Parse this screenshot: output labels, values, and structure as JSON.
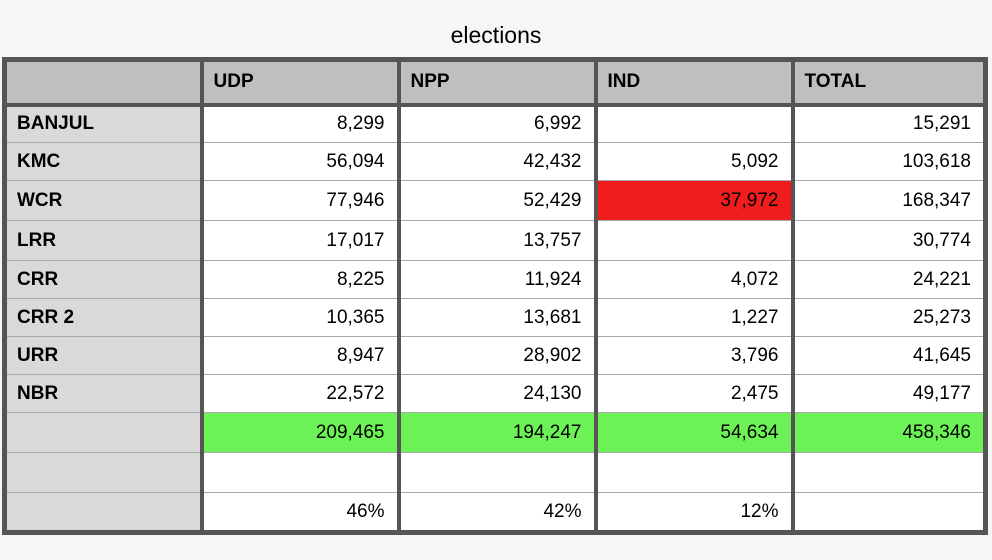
{
  "title": "elections",
  "columns": [
    "",
    "UDP",
    "NPP",
    "IND",
    "TOTAL"
  ],
  "rows": [
    {
      "label": "BANJUL",
      "cells": [
        "8,299",
        "6,992",
        "",
        "15,291"
      ]
    },
    {
      "label": "KMC",
      "cells": [
        "56,094",
        "42,432",
        "5,092",
        "103,618"
      ]
    },
    {
      "label": "WCR",
      "cells": [
        "77,946",
        "52,429",
        "37,972",
        "168,347"
      ]
    },
    {
      "label": "LRR",
      "cells": [
        "17,017",
        "13,757",
        "",
        "30,774"
      ]
    },
    {
      "label": "CRR",
      "cells": [
        "8,225",
        "11,924",
        "4,072",
        "24,221"
      ]
    },
    {
      "label": "CRR 2",
      "cells": [
        "10,365",
        "13,681",
        "1,227",
        "25,273"
      ]
    },
    {
      "label": "URR",
      "cells": [
        "8,947",
        "28,902",
        "3,796",
        "41,645"
      ]
    },
    {
      "label": "NBR",
      "cells": [
        "22,572",
        "24,130",
        "2,475",
        "49,177"
      ]
    }
  ],
  "totals": {
    "label": "",
    "cells": [
      "209,465",
      "194,247",
      "54,634",
      "458,346"
    ]
  },
  "blank_row": {
    "label": "",
    "cells": [
      "",
      "",
      "",
      ""
    ]
  },
  "percent_row": {
    "label": "",
    "cells": [
      "46%",
      "42%",
      "12%",
      ""
    ]
  },
  "colors": {
    "header_bg": "#bfbfbf",
    "row_label_bg": "#d9d9d9",
    "totals_bg": "#6cf256",
    "highlight_bg": "#f11c1c",
    "border_dark": "#555555"
  },
  "highlight_cell": {
    "row": "WCR",
    "column": "IND"
  }
}
